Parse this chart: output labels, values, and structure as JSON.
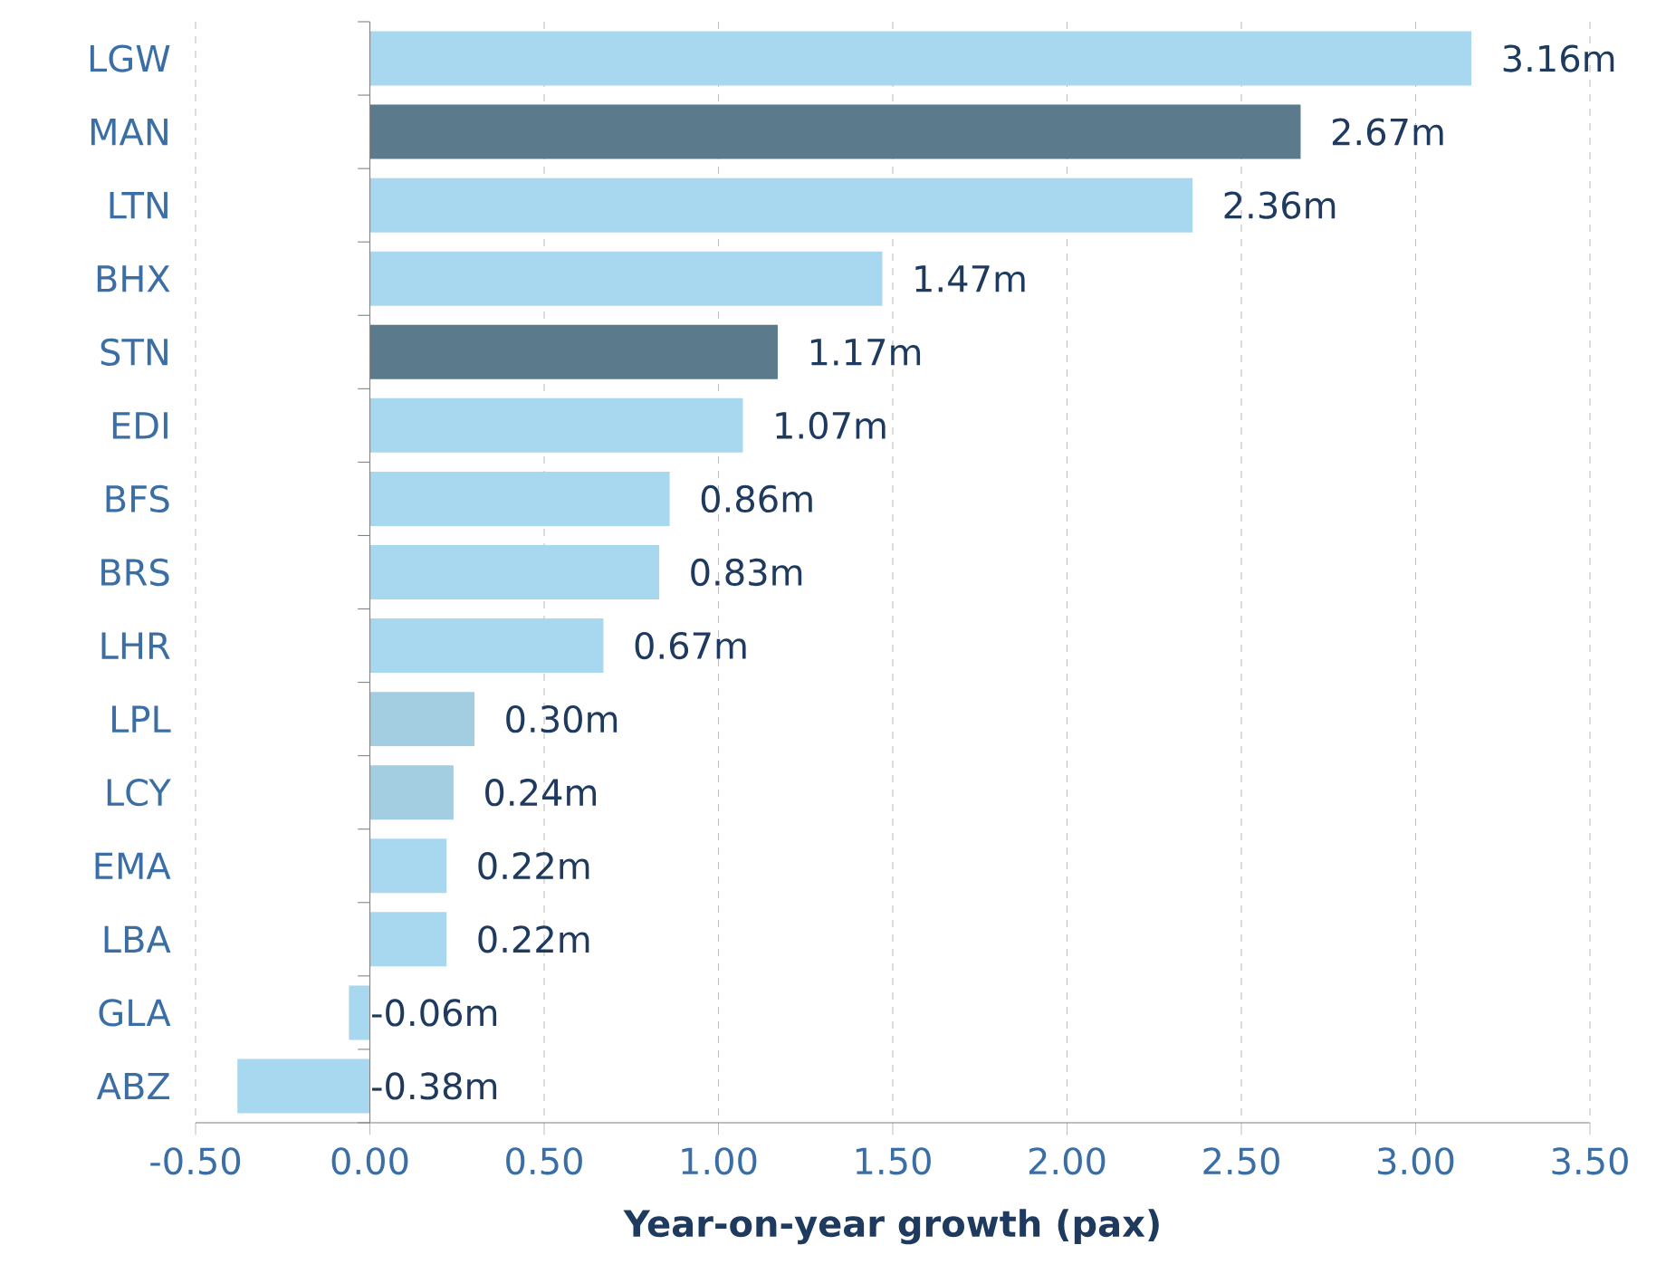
{
  "chart_data": {
    "type": "bar",
    "orientation": "horizontal",
    "xlabel": "Year-on-year growth (pax)",
    "categories": [
      "LGW",
      "MAN",
      "LTN",
      "BHX",
      "STN",
      "EDI",
      "BFS",
      "BRS",
      "LHR",
      "LPL",
      "LCY",
      "EMA",
      "LBA",
      "GLA",
      "ABZ"
    ],
    "values": [
      3.16,
      2.67,
      2.36,
      1.47,
      1.17,
      1.07,
      0.86,
      0.83,
      0.67,
      0.3,
      0.24,
      0.22,
      0.22,
      -0.06,
      -0.38
    ],
    "value_labels": [
      "3.16m",
      "2.67m",
      "2.36m",
      "1.47m",
      "1.17m",
      "1.07m",
      "0.86m",
      "0.83m",
      "0.67m",
      "0.30m",
      "0.24m",
      "0.22m",
      "0.22m",
      "-0.06m",
      "-0.38m"
    ],
    "colors": [
      "#a8d8ef",
      "#5b7b8c",
      "#a8d8ef",
      "#a8d8ef",
      "#5b7b8c",
      "#a8d8ef",
      "#a8d8ef",
      "#a8d8ef",
      "#a8d8ef",
      "#a3cde0",
      "#a3cde0",
      "#a8d8ef",
      "#a8d8ef",
      "#a8d8ef",
      "#a8d8ef"
    ],
    "xlim": [
      -0.5,
      3.5
    ],
    "xticks": [
      {
        "value": -0.5,
        "label": "-0.50"
      },
      {
        "value": 0,
        "label": "0.00"
      },
      {
        "value": 0.5,
        "label": "0.50"
      },
      {
        "value": 1,
        "label": "1.00"
      },
      {
        "value": 1.5,
        "label": "1.50"
      },
      {
        "value": 2,
        "label": "2.00"
      },
      {
        "value": 2.5,
        "label": "2.50"
      },
      {
        "value": 3,
        "label": "3.00"
      },
      {
        "value": 3.5,
        "label": "3.50"
      }
    ],
    "grid": "x"
  }
}
